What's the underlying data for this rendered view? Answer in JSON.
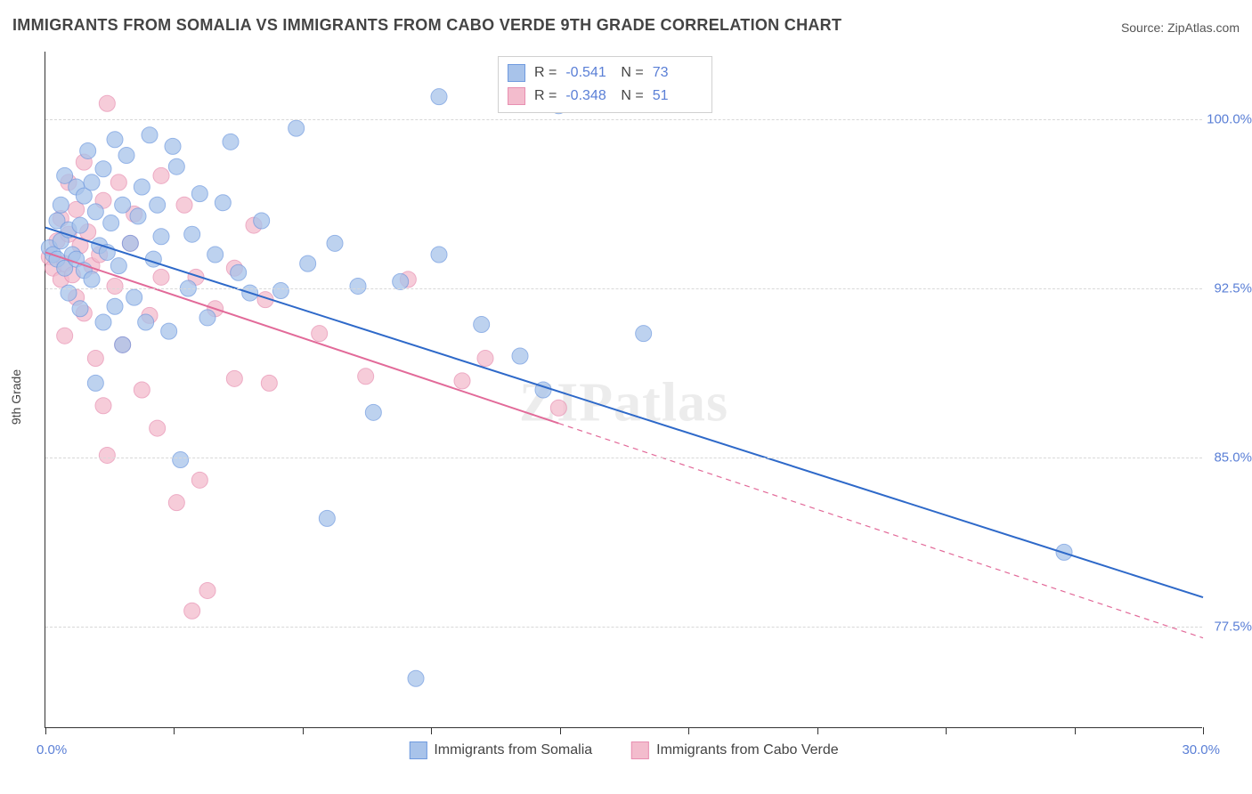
{
  "title": "IMMIGRANTS FROM SOMALIA VS IMMIGRANTS FROM CABO VERDE 9TH GRADE CORRELATION CHART",
  "source_label": "Source: ",
  "source_name": "ZipAtlas.com",
  "y_axis_label": "9th Grade",
  "watermark": "ZIPatlas",
  "chart": {
    "type": "scatter",
    "x_domain": [
      0,
      30
    ],
    "y_domain": [
      73,
      103
    ],
    "x_ticks": [
      0,
      3.33,
      6.67,
      10,
      13.33,
      16.67,
      20,
      23.33,
      26.67,
      30
    ],
    "y_gridlines": [
      77.5,
      85.0,
      92.5,
      100.0
    ],
    "y_tick_labels": [
      "77.5%",
      "85.0%",
      "92.5%",
      "100.0%"
    ],
    "x_min_label": "0.0%",
    "x_max_label": "30.0%",
    "background_color": "#ffffff",
    "grid_color": "#d8d8d8",
    "axis_color": "#333333",
    "label_color": "#5a7fd6"
  },
  "series": [
    {
      "name": "Immigrants from Somalia",
      "color_fill": "#a8c3ea",
      "color_stroke": "#6f9adf",
      "marker_radius": 9,
      "marker_opacity": 0.75,
      "R": "-0.541",
      "N": "73",
      "regression": {
        "x1": 0,
        "y1": 95.2,
        "x2": 30,
        "y2": 78.8,
        "solid_until_x": 30,
        "color": "#2e69c9",
        "width": 2
      },
      "points": [
        [
          0.1,
          94.3
        ],
        [
          0.2,
          94.0
        ],
        [
          0.3,
          95.5
        ],
        [
          0.3,
          93.8
        ],
        [
          0.4,
          94.6
        ],
        [
          0.4,
          96.2
        ],
        [
          0.5,
          93.4
        ],
        [
          0.5,
          97.5
        ],
        [
          0.6,
          95.1
        ],
        [
          0.6,
          92.3
        ],
        [
          0.7,
          94.0
        ],
        [
          0.8,
          97.0
        ],
        [
          0.8,
          93.8
        ],
        [
          0.9,
          95.3
        ],
        [
          0.9,
          91.6
        ],
        [
          1.0,
          96.6
        ],
        [
          1.0,
          93.3
        ],
        [
          1.1,
          98.6
        ],
        [
          1.2,
          97.2
        ],
        [
          1.2,
          92.9
        ],
        [
          1.3,
          95.9
        ],
        [
          1.3,
          88.3
        ],
        [
          1.4,
          94.4
        ],
        [
          1.5,
          97.8
        ],
        [
          1.5,
          91.0
        ],
        [
          1.6,
          94.1
        ],
        [
          1.7,
          95.4
        ],
        [
          1.8,
          99.1
        ],
        [
          1.8,
          91.7
        ],
        [
          1.9,
          93.5
        ],
        [
          2.0,
          96.2
        ],
        [
          2.0,
          90.0
        ],
        [
          2.1,
          98.4
        ],
        [
          2.2,
          94.5
        ],
        [
          2.3,
          92.1
        ],
        [
          2.4,
          95.7
        ],
        [
          2.5,
          97.0
        ],
        [
          2.6,
          91.0
        ],
        [
          2.7,
          99.3
        ],
        [
          2.8,
          93.8
        ],
        [
          2.9,
          96.2
        ],
        [
          3.0,
          94.8
        ],
        [
          3.2,
          90.6
        ],
        [
          3.3,
          98.8
        ],
        [
          3.4,
          97.9
        ],
        [
          3.5,
          84.9
        ],
        [
          3.7,
          92.5
        ],
        [
          3.8,
          94.9
        ],
        [
          4.0,
          96.7
        ],
        [
          4.2,
          91.2
        ],
        [
          4.4,
          94.0
        ],
        [
          4.6,
          96.3
        ],
        [
          4.8,
          99.0
        ],
        [
          5.0,
          93.2
        ],
        [
          5.3,
          92.3
        ],
        [
          5.6,
          95.5
        ],
        [
          6.1,
          92.4
        ],
        [
          6.5,
          99.6
        ],
        [
          6.8,
          93.6
        ],
        [
          7.3,
          82.3
        ],
        [
          7.5,
          94.5
        ],
        [
          8.1,
          92.6
        ],
        [
          8.5,
          87.0
        ],
        [
          9.2,
          92.8
        ],
        [
          9.6,
          75.2
        ],
        [
          10.2,
          94.0
        ],
        [
          10.2,
          101.0
        ],
        [
          11.3,
          90.9
        ],
        [
          12.3,
          89.5
        ],
        [
          12.9,
          88.0
        ],
        [
          13.3,
          100.6
        ],
        [
          15.5,
          90.5
        ],
        [
          26.4,
          80.8
        ]
      ]
    },
    {
      "name": "Immigrants from Cabo Verde",
      "color_fill": "#f3bccd",
      "color_stroke": "#e88fb1",
      "marker_radius": 9,
      "marker_opacity": 0.75,
      "R": "-0.348",
      "N": "51",
      "regression": {
        "x1": 0,
        "y1": 94.1,
        "x2": 30,
        "y2": 77.0,
        "solid_until_x": 13.3,
        "color": "#e26a99",
        "width": 2
      },
      "points": [
        [
          0.1,
          93.9
        ],
        [
          0.2,
          93.4
        ],
        [
          0.3,
          94.6
        ],
        [
          0.4,
          92.9
        ],
        [
          0.4,
          95.6
        ],
        [
          0.5,
          93.6
        ],
        [
          0.5,
          90.4
        ],
        [
          0.6,
          94.9
        ],
        [
          0.6,
          97.2
        ],
        [
          0.7,
          93.1
        ],
        [
          0.8,
          96.0
        ],
        [
          0.8,
          92.1
        ],
        [
          0.9,
          94.4
        ],
        [
          1.0,
          98.1
        ],
        [
          1.0,
          91.4
        ],
        [
          1.1,
          95.0
        ],
        [
          1.2,
          93.5
        ],
        [
          1.3,
          89.4
        ],
        [
          1.4,
          94.0
        ],
        [
          1.5,
          96.4
        ],
        [
          1.5,
          87.3
        ],
        [
          1.6,
          100.7
        ],
        [
          1.6,
          85.1
        ],
        [
          1.8,
          92.6
        ],
        [
          1.9,
          97.2
        ],
        [
          2.0,
          90.0
        ],
        [
          2.2,
          94.5
        ],
        [
          2.3,
          95.8
        ],
        [
          2.5,
          88.0
        ],
        [
          2.7,
          91.3
        ],
        [
          2.9,
          86.3
        ],
        [
          3.0,
          93.0
        ],
        [
          3.0,
          97.5
        ],
        [
          3.4,
          83.0
        ],
        [
          3.6,
          96.2
        ],
        [
          3.8,
          78.2
        ],
        [
          3.9,
          93.0
        ],
        [
          4.0,
          84.0
        ],
        [
          4.2,
          79.1
        ],
        [
          4.4,
          91.6
        ],
        [
          4.9,
          93.4
        ],
        [
          4.9,
          88.5
        ],
        [
          5.4,
          95.3
        ],
        [
          5.7,
          92.0
        ],
        [
          5.8,
          88.3
        ],
        [
          7.1,
          90.5
        ],
        [
          8.3,
          88.6
        ],
        [
          9.4,
          92.9
        ],
        [
          10.8,
          88.4
        ],
        [
          11.4,
          89.4
        ],
        [
          13.3,
          87.2
        ]
      ]
    }
  ],
  "stats_labels": {
    "R": "R  =",
    "N": "N  ="
  },
  "bottom_legend_series": [
    "Immigrants from Somalia",
    "Immigrants from Cabo Verde"
  ]
}
